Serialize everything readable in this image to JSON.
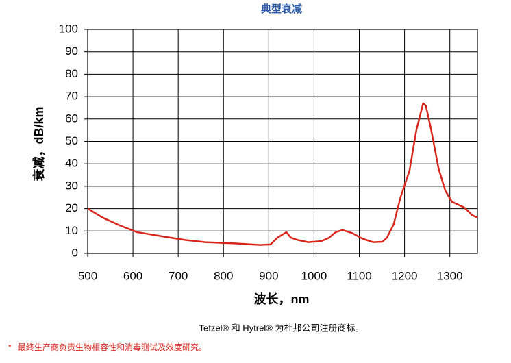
{
  "chart_data": {
    "type": "line",
    "title": "典型衰减",
    "x_label": "波长，nm",
    "y_label": "衰减，dB/km",
    "x": [
      500,
      533,
      571,
      609,
      669,
      715,
      760,
      821,
      881,
      904,
      919,
      939,
      949,
      964,
      987,
      1017,
      1033,
      1048,
      1063,
      1085,
      1108,
      1131,
      1151,
      1161,
      1176,
      1191,
      1211,
      1226,
      1241,
      1247,
      1259,
      1275,
      1290,
      1305,
      1332,
      1350,
      1361
    ],
    "series": [
      {
        "color": "#d8261c",
        "values": [
          20,
          16,
          12.5,
          9.5,
          7.5,
          6,
          5,
          4.5,
          3.8,
          4,
          7,
          9.5,
          7,
          6,
          5,
          5.5,
          7,
          9.5,
          10.5,
          9,
          6.5,
          5,
          5.2,
          7,
          13,
          25,
          37,
          55,
          67,
          66,
          55,
          38,
          28,
          23,
          20.5,
          17,
          16
        ]
      }
    ],
    "xlim": [
      500,
      1361
    ],
    "xticks": [
      500,
      600,
      700,
      800,
      900,
      1000,
      1100,
      1200,
      1300
    ],
    "ylim": [
      0,
      100
    ],
    "yticks": [
      0,
      10,
      20,
      30,
      40,
      50,
      60,
      70,
      80,
      90,
      100
    ],
    "grid": true
  },
  "footnotes": {
    "trademark": "Tefzel® 和 Hytrel® 为杜邦公司注册商标。",
    "star": "*",
    "disclaimer": "最终生产商负责生物相容性和消毒测试及效度研究。"
  }
}
